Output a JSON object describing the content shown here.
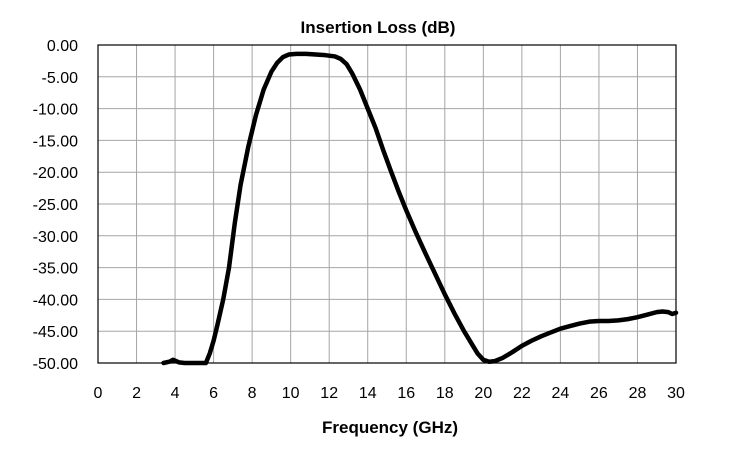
{
  "chart_data": {
    "type": "line",
    "title": "Insertion Loss (dB)",
    "xlabel": "Frequency (GHz)",
    "ylabel": "",
    "xlim": [
      0,
      30
    ],
    "ylim": [
      -50,
      0
    ],
    "grid": true,
    "legend": "none",
    "x_ticks": [
      "0",
      "2",
      "4",
      "6",
      "8",
      "10",
      "12",
      "14",
      "16",
      "18",
      "20",
      "22",
      "24",
      "26",
      "28",
      "30"
    ],
    "x_tick_values": [
      0,
      2,
      4,
      6,
      8,
      10,
      12,
      14,
      16,
      18,
      20,
      22,
      24,
      26,
      28,
      30
    ],
    "y_ticks": [
      "0.00",
      "-5.00",
      "-10.00",
      "-15.00",
      "-20.00",
      "-25.00",
      "-30.00",
      "-35.00",
      "-40.00",
      "-45.00",
      "-50.00"
    ],
    "y_tick_values": [
      0,
      -5,
      -10,
      -15,
      -20,
      -25,
      -30,
      -35,
      -40,
      -45,
      -50
    ],
    "line_color": "#000000",
    "grid_color": "#a6a6a6",
    "series": [
      {
        "x": [
          3.4,
          3.7,
          3.9,
          4.2,
          4.5,
          5.0,
          5.6,
          5.8,
          6.0,
          6.2,
          6.5,
          6.8,
          7.1,
          7.4,
          7.8,
          8.2,
          8.6,
          9.0,
          9.3,
          9.6,
          9.9,
          10.3,
          10.8,
          11.3,
          11.8,
          12.3,
          12.6,
          12.9,
          13.2,
          13.6,
          14.0,
          14.4,
          14.8,
          15.2,
          15.6,
          16.0,
          16.5,
          17.0,
          17.5,
          18.0,
          18.5,
          19.0,
          19.4,
          19.7,
          20.0,
          20.3,
          20.6,
          21.0,
          21.5,
          22.0,
          22.5,
          23.0,
          23.5,
          24.0,
          24.5,
          25.0,
          25.5,
          26.0,
          26.5,
          27.0,
          27.5,
          28.0,
          28.5,
          29.0,
          29.3,
          29.6,
          29.8,
          30.0
        ],
        "y": [
          -50.0,
          -49.8,
          -49.5,
          -49.9,
          -50.0,
          -50.0,
          -50.0,
          -48.5,
          -46.5,
          -44.0,
          -40.0,
          -35.0,
          -28.0,
          -22.0,
          -16.0,
          -11.0,
          -7.0,
          -4.2,
          -2.8,
          -1.9,
          -1.5,
          -1.4,
          -1.4,
          -1.5,
          -1.6,
          -1.8,
          -2.2,
          -3.0,
          -4.5,
          -7.0,
          -10.0,
          -13.0,
          -16.5,
          -19.8,
          -23.0,
          -26.0,
          -29.5,
          -32.8,
          -36.0,
          -39.2,
          -42.2,
          -45.0,
          -47.0,
          -48.5,
          -49.5,
          -49.8,
          -49.7,
          -49.2,
          -48.3,
          -47.3,
          -46.5,
          -45.8,
          -45.2,
          -44.6,
          -44.2,
          -43.8,
          -43.5,
          -43.4,
          -43.4,
          -43.3,
          -43.1,
          -42.8,
          -42.4,
          -42.0,
          -41.9,
          -42.0,
          -42.3,
          -42.1
        ]
      }
    ]
  }
}
